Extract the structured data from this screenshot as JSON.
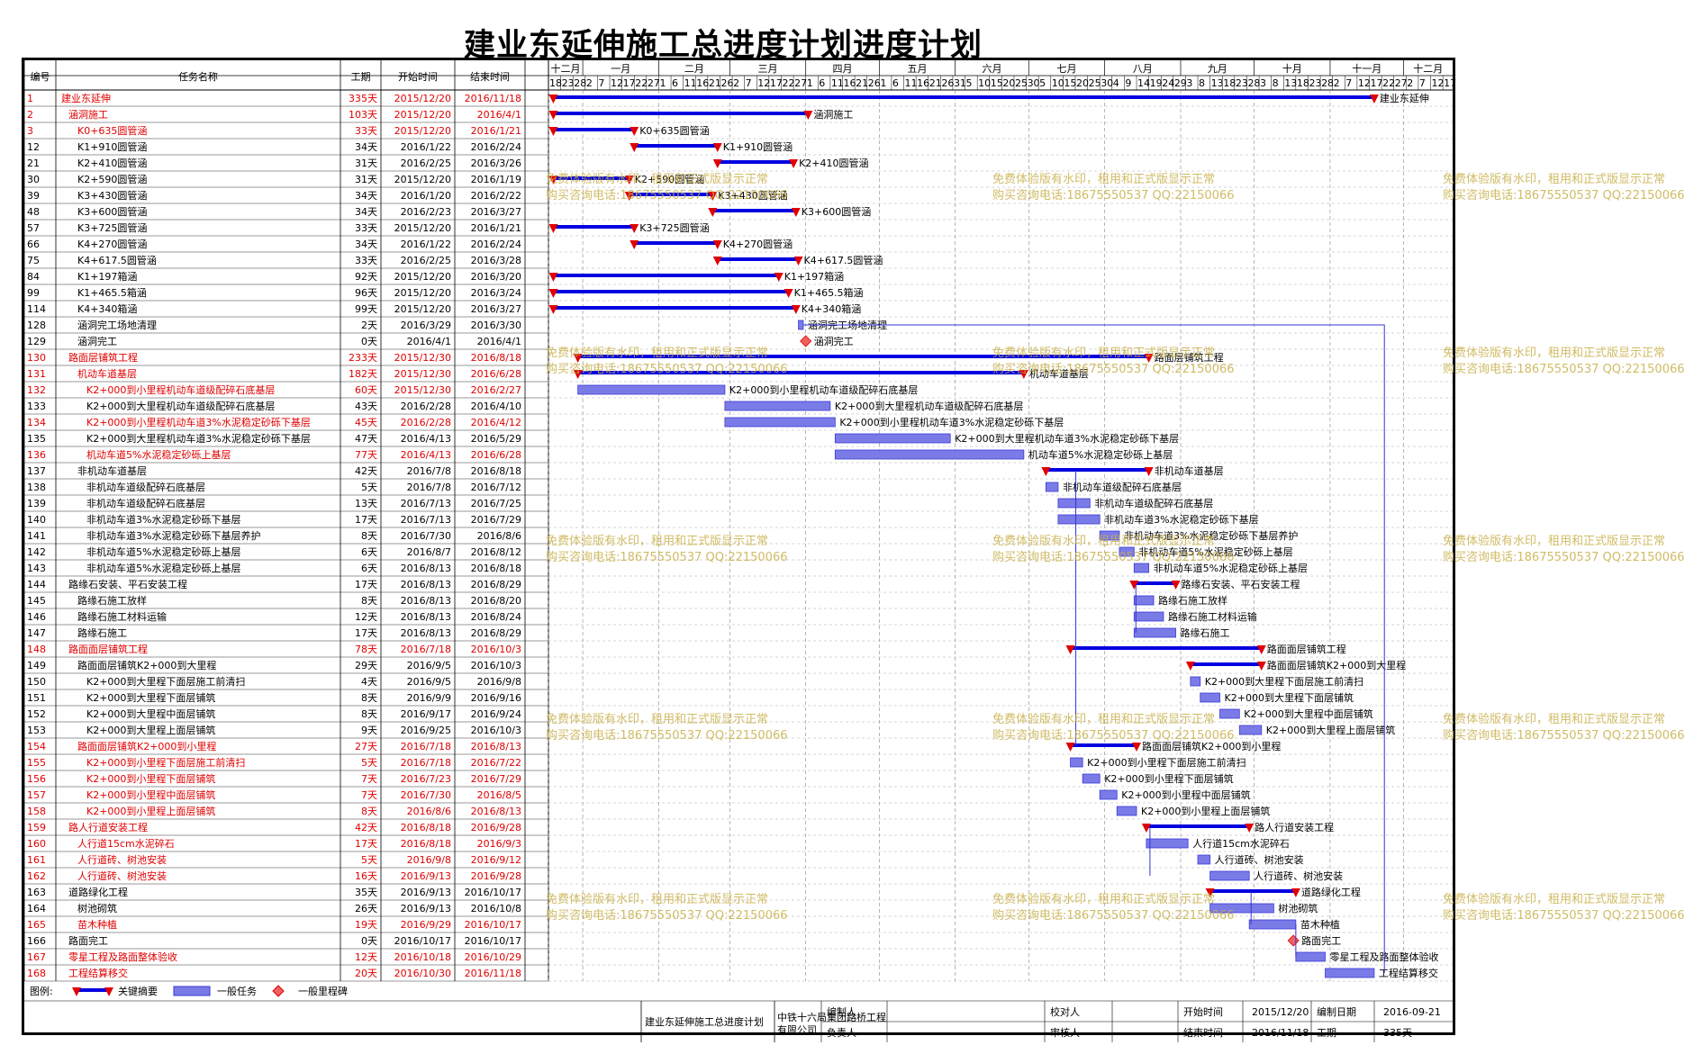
{
  "title": "建业东延伸施工总进度计划进度计划",
  "columns": {
    "id": "编号",
    "name": "任务名称",
    "duration": "工期",
    "start": "开始时间",
    "end": "结束时间"
  },
  "timeline": {
    "start": "2015-12-18",
    "end": "2016-12-21",
    "months": [
      {
        "label": "十二月",
        "start": "2015-12-18",
        "end": "2016-01-01"
      },
      {
        "label": "一月",
        "start": "2016-01-01",
        "end": "2016-02-01"
      },
      {
        "label": "二月",
        "start": "2016-02-01",
        "end": "2016-03-01"
      },
      {
        "label": "三月",
        "start": "2016-03-01",
        "end": "2016-04-01"
      },
      {
        "label": "四月",
        "start": "2016-04-01",
        "end": "2016-05-01"
      },
      {
        "label": "五月",
        "start": "2016-05-01",
        "end": "2016-06-01"
      },
      {
        "label": "六月",
        "start": "2016-06-01",
        "end": "2016-07-01"
      },
      {
        "label": "七月",
        "start": "2016-07-01",
        "end": "2016-08-01"
      },
      {
        "label": "八月",
        "start": "2016-08-01",
        "end": "2016-09-01"
      },
      {
        "label": "九月",
        "start": "2016-09-01",
        "end": "2016-10-01"
      },
      {
        "label": "十月",
        "start": "2016-10-01",
        "end": "2016-11-01"
      },
      {
        "label": "十一月",
        "start": "2016-11-01",
        "end": "2016-12-01"
      },
      {
        "label": "十二月",
        "start": "2016-12-01",
        "end": "2016-12-21"
      }
    ],
    "day_ticks": [
      "18",
      "23",
      "28",
      "2",
      "7",
      "12",
      "17",
      "22",
      "27",
      "1",
      "6",
      "11",
      "16",
      "21",
      "26",
      "2",
      "7",
      "12",
      "17",
      "22",
      "27",
      "1",
      "6",
      "11",
      "16",
      "21",
      "26",
      "1",
      "6",
      "11",
      "16",
      "21",
      "26",
      "31",
      "5",
      "10",
      "15",
      "20",
      "25",
      "30",
      "5",
      "10",
      "15",
      "20",
      "25",
      "30",
      "4",
      "9",
      "14",
      "19",
      "24",
      "29",
      "3",
      "8",
      "13",
      "18",
      "23",
      "28",
      "3",
      "8",
      "13",
      "18",
      "23",
      "28",
      "2",
      "7",
      "12",
      "17",
      "22",
      "27",
      "2",
      "7",
      "12",
      "17"
    ]
  },
  "chart_data": {
    "type": "gantt",
    "title": "建业东延伸施工总进度计划进度计划",
    "tasks": [
      {
        "id": "1",
        "name": "建业东延伸",
        "duration": "335天",
        "start": "2015/12/20",
        "end": "2016/11/18",
        "kind": "summary",
        "critical": true,
        "level": 1
      },
      {
        "id": "2",
        "name": "涵洞施工",
        "duration": "103天",
        "start": "2015/12/20",
        "end": "2016/4/1",
        "kind": "summary",
        "critical": true,
        "level": 2
      },
      {
        "id": "3",
        "name": "K0+635圆管涵",
        "duration": "33天",
        "start": "2015/12/20",
        "end": "2016/1/21",
        "kind": "summary",
        "critical": true,
        "level": 3
      },
      {
        "id": "12",
        "name": "K1+910圆管涵",
        "duration": "34天",
        "start": "2016/1/22",
        "end": "2016/2/24",
        "kind": "summary",
        "critical": false,
        "level": 3
      },
      {
        "id": "21",
        "name": "K2+410圆管涵",
        "duration": "31天",
        "start": "2016/2/25",
        "end": "2016/3/26",
        "kind": "summary",
        "critical": false,
        "level": 3
      },
      {
        "id": "30",
        "name": "K2+590圆管涵",
        "duration": "31天",
        "start": "2015/12/20",
        "end": "2016/1/19",
        "kind": "summary",
        "critical": false,
        "level": 3
      },
      {
        "id": "39",
        "name": "K3+430圆管涵",
        "duration": "34天",
        "start": "2016/1/20",
        "end": "2016/2/22",
        "kind": "summary",
        "critical": false,
        "level": 3
      },
      {
        "id": "48",
        "name": "K3+600圆管涵",
        "duration": "34天",
        "start": "2016/2/23",
        "end": "2016/3/27",
        "kind": "summary",
        "critical": false,
        "level": 3
      },
      {
        "id": "57",
        "name": "K3+725圆管涵",
        "duration": "33天",
        "start": "2015/12/20",
        "end": "2016/1/21",
        "kind": "summary",
        "critical": false,
        "level": 3
      },
      {
        "id": "66",
        "name": "K4+270圆管涵",
        "duration": "34天",
        "start": "2016/1/22",
        "end": "2016/2/24",
        "kind": "summary",
        "critical": false,
        "level": 3
      },
      {
        "id": "75",
        "name": "K4+617.5圆管涵",
        "duration": "33天",
        "start": "2016/2/25",
        "end": "2016/3/28",
        "kind": "summary",
        "critical": false,
        "level": 3
      },
      {
        "id": "84",
        "name": "K1+197箱涵",
        "duration": "92天",
        "start": "2015/12/20",
        "end": "2016/3/20",
        "kind": "summary",
        "critical": false,
        "level": 3
      },
      {
        "id": "99",
        "name": "K1+465.5箱涵",
        "duration": "96天",
        "start": "2015/12/20",
        "end": "2016/3/24",
        "kind": "summary",
        "critical": false,
        "level": 3
      },
      {
        "id": "114",
        "name": "K4+340箱涵",
        "duration": "99天",
        "start": "2015/12/20",
        "end": "2016/3/27",
        "kind": "summary",
        "critical": false,
        "level": 3
      },
      {
        "id": "128",
        "name": "涵洞完工场地清理",
        "duration": "2天",
        "start": "2016/3/29",
        "end": "2016/3/30",
        "kind": "task",
        "critical": false,
        "level": 3
      },
      {
        "id": "129",
        "name": "涵洞完工",
        "duration": "0天",
        "start": "2016/4/1",
        "end": "2016/4/1",
        "kind": "milestone",
        "critical": false,
        "level": 3
      },
      {
        "id": "130",
        "name": "路面层铺筑工程",
        "duration": "233天",
        "start": "2015/12/30",
        "end": "2016/8/18",
        "kind": "summary",
        "critical": true,
        "level": 2
      },
      {
        "id": "131",
        "name": "机动车道基层",
        "duration": "182天",
        "start": "2015/12/30",
        "end": "2016/6/28",
        "kind": "summary",
        "critical": true,
        "level": 3
      },
      {
        "id": "132",
        "name": "K2+000到小里程机动车道级配碎石底基层",
        "duration": "60天",
        "start": "2015/12/30",
        "end": "2016/2/27",
        "kind": "task",
        "critical": true,
        "level": 4
      },
      {
        "id": "133",
        "name": "K2+000到大里程机动车道级配碎石底基层",
        "duration": "43天",
        "start": "2016/2/28",
        "end": "2016/4/10",
        "kind": "task",
        "critical": false,
        "level": 4
      },
      {
        "id": "134",
        "name": "K2+000到小里程机动车道3%水泥稳定砂砾下基层",
        "duration": "45天",
        "start": "2016/2/28",
        "end": "2016/4/12",
        "kind": "task",
        "critical": true,
        "level": 4
      },
      {
        "id": "135",
        "name": "K2+000到大里程机动车道3%水泥稳定砂砾下基层",
        "duration": "47天",
        "start": "2016/4/13",
        "end": "2016/5/29",
        "kind": "task",
        "critical": false,
        "level": 4
      },
      {
        "id": "136",
        "name": "机动车道5%水泥稳定砂砾上基层",
        "duration": "77天",
        "start": "2016/4/13",
        "end": "2016/6/28",
        "kind": "task",
        "critical": true,
        "level": 4
      },
      {
        "id": "137",
        "name": "非机动车道基层",
        "duration": "42天",
        "start": "2016/7/8",
        "end": "2016/8/18",
        "kind": "summary",
        "critical": false,
        "level": 3
      },
      {
        "id": "138",
        "name": "非机动车道级配碎石底基层",
        "duration": "5天",
        "start": "2016/7/8",
        "end": "2016/7/12",
        "kind": "task",
        "critical": false,
        "level": 4
      },
      {
        "id": "139",
        "name": "非机动车道级配碎石底基层",
        "duration": "13天",
        "start": "2016/7/13",
        "end": "2016/7/25",
        "kind": "task",
        "critical": false,
        "level": 4
      },
      {
        "id": "140",
        "name": "非机动车道3%水泥稳定砂砾下基层",
        "duration": "17天",
        "start": "2016/7/13",
        "end": "2016/7/29",
        "kind": "task",
        "critical": false,
        "level": 4
      },
      {
        "id": "141",
        "name": "非机动车道3%水泥稳定砂砾下基层养护",
        "duration": "8天",
        "start": "2016/7/30",
        "end": "2016/8/6",
        "kind": "task",
        "critical": false,
        "level": 4
      },
      {
        "id": "142",
        "name": "非机动车道5%水泥稳定砂砾上基层",
        "duration": "6天",
        "start": "2016/8/7",
        "end": "2016/8/12",
        "kind": "task",
        "critical": false,
        "level": 4
      },
      {
        "id": "143",
        "name": "非机动车道5%水泥稳定砂砾上基层",
        "duration": "6天",
        "start": "2016/8/13",
        "end": "2016/8/18",
        "kind": "task",
        "critical": false,
        "level": 4
      },
      {
        "id": "144",
        "name": "路缘石安装、平石安装工程",
        "duration": "17天",
        "start": "2016/8/13",
        "end": "2016/8/29",
        "kind": "summary",
        "critical": false,
        "level": 2
      },
      {
        "id": "145",
        "name": "路缘石施工放样",
        "duration": "8天",
        "start": "2016/8/13",
        "end": "2016/8/20",
        "kind": "task",
        "critical": false,
        "level": 3
      },
      {
        "id": "146",
        "name": "路缘石施工材料运输",
        "duration": "12天",
        "start": "2016/8/13",
        "end": "2016/8/24",
        "kind": "task",
        "critical": false,
        "level": 3
      },
      {
        "id": "147",
        "name": "路缘石施工",
        "duration": "17天",
        "start": "2016/8/13",
        "end": "2016/8/29",
        "kind": "task",
        "critical": false,
        "level": 3
      },
      {
        "id": "148",
        "name": "路面面层铺筑工程",
        "duration": "78天",
        "start": "2016/7/18",
        "end": "2016/10/3",
        "kind": "summary",
        "critical": true,
        "level": 2
      },
      {
        "id": "149",
        "name": "路面面层铺筑K2+000到大里程",
        "duration": "29天",
        "start": "2016/9/5",
        "end": "2016/10/3",
        "kind": "summary",
        "critical": false,
        "level": 3
      },
      {
        "id": "150",
        "name": "K2+000到大里程下面层施工前清扫",
        "duration": "4天",
        "start": "2016/9/5",
        "end": "2016/9/8",
        "kind": "task",
        "critical": false,
        "level": 4
      },
      {
        "id": "151",
        "name": "K2+000到大里程下面层铺筑",
        "duration": "8天",
        "start": "2016/9/9",
        "end": "2016/9/16",
        "kind": "task",
        "critical": false,
        "level": 4
      },
      {
        "id": "152",
        "name": "K2+000到大里程中面层铺筑",
        "duration": "8天",
        "start": "2016/9/17",
        "end": "2016/9/24",
        "kind": "task",
        "critical": false,
        "level": 4
      },
      {
        "id": "153",
        "name": "K2+000到大里程上面层铺筑",
        "duration": "9天",
        "start": "2016/9/25",
        "end": "2016/10/3",
        "kind": "task",
        "critical": false,
        "level": 4
      },
      {
        "id": "154",
        "name": "路面面层铺筑K2+000到小里程",
        "duration": "27天",
        "start": "2016/7/18",
        "end": "2016/8/13",
        "kind": "summary",
        "critical": true,
        "level": 3
      },
      {
        "id": "155",
        "name": "K2+000到小里程下面层施工前清扫",
        "duration": "5天",
        "start": "2016/7/18",
        "end": "2016/7/22",
        "kind": "task",
        "critical": true,
        "level": 4
      },
      {
        "id": "156",
        "name": "K2+000到小里程下面层铺筑",
        "duration": "7天",
        "start": "2016/7/23",
        "end": "2016/7/29",
        "kind": "task",
        "critical": true,
        "level": 4
      },
      {
        "id": "157",
        "name": "K2+000到小里程中面层铺筑",
        "duration": "7天",
        "start": "2016/7/30",
        "end": "2016/8/5",
        "kind": "task",
        "critical": true,
        "level": 4
      },
      {
        "id": "158",
        "name": "K2+000到小里程上面层铺筑",
        "duration": "8天",
        "start": "2016/8/6",
        "end": "2016/8/13",
        "kind": "task",
        "critical": true,
        "level": 4
      },
      {
        "id": "159",
        "name": "路人行道安装工程",
        "duration": "42天",
        "start": "2016/8/18",
        "end": "2016/9/28",
        "kind": "summary",
        "critical": true,
        "level": 2
      },
      {
        "id": "160",
        "name": "人行道15cm水泥碎石",
        "duration": "17天",
        "start": "2016/8/18",
        "end": "2016/9/3",
        "kind": "task",
        "critical": true,
        "level": 3
      },
      {
        "id": "161",
        "name": "人行道砖、树池安装",
        "duration": "5天",
        "start": "2016/9/8",
        "end": "2016/9/12",
        "kind": "task",
        "critical": true,
        "level": 3
      },
      {
        "id": "162",
        "name": "人行道砖、树池安装",
        "duration": "16天",
        "start": "2016/9/13",
        "end": "2016/9/28",
        "kind": "task",
        "critical": true,
        "level": 3
      },
      {
        "id": "163",
        "name": "道路绿化工程",
        "duration": "35天",
        "start": "2016/9/13",
        "end": "2016/10/17",
        "kind": "summary",
        "critical": false,
        "level": 2
      },
      {
        "id": "164",
        "name": "树池砌筑",
        "duration": "26天",
        "start": "2016/9/13",
        "end": "2016/10/8",
        "kind": "task",
        "critical": false,
        "level": 3
      },
      {
        "id": "165",
        "name": "苗木种植",
        "duration": "19天",
        "start": "2016/9/29",
        "end": "2016/10/17",
        "kind": "task",
        "critical": true,
        "level": 3
      },
      {
        "id": "166",
        "name": "路面完工",
        "duration": "0天",
        "start": "2016/10/17",
        "end": "2016/10/17",
        "kind": "milestone",
        "critical": false,
        "level": 2
      },
      {
        "id": "167",
        "name": "零星工程及路面整体验收",
        "duration": "12天",
        "start": "2016/10/18",
        "end": "2016/10/29",
        "kind": "task",
        "critical": true,
        "level": 2
      },
      {
        "id": "168",
        "name": "工程结算移交",
        "duration": "20天",
        "start": "2016/10/30",
        "end": "2016/11/18",
        "kind": "task",
        "critical": true,
        "level": 2
      }
    ]
  },
  "legend": {
    "label": "图例:",
    "items": [
      "关键摘要",
      "一般任务",
      "一般里程碑"
    ]
  },
  "footer": {
    "project": "建业东延伸施工总进度计划",
    "company": "中铁十六局集团路桥工程有限公司",
    "editor_label": "编制人",
    "checker_label": "校对人",
    "responsible_label": "负责人",
    "reviewer_label": "审核人",
    "start_label": "开始时间",
    "start_value": "2015/12/20",
    "end_label": "结束时间",
    "end_value": "2016/11/18",
    "date_label": "编制日期",
    "date_value": "2016-09-21",
    "duration_label": "工期",
    "duration_value": "335天"
  },
  "watermark": {
    "line1": "免费体验版有水印，租用和正式版显示正常",
    "line2": "购买咨询电话:18675550537 QQ:22150066"
  },
  "colors": {
    "critical": "#e00000",
    "summary": "#0000e0",
    "task_fill": "#7b7be8",
    "task_border": "#3a3ad6",
    "link": "#3434d8",
    "watermark": "#c8b04a"
  }
}
